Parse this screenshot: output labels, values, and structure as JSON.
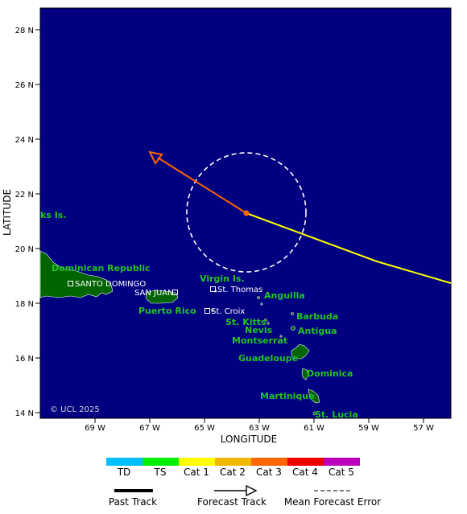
{
  "map": {
    "axes": {
      "xlabel": "LONGITUDE",
      "ylabel": "LATITUDE",
      "lon_ticks": [
        "69 W",
        "67 W",
        "65 W",
        "63 W",
        "61 W",
        "59 W",
        "57 W"
      ],
      "lat_ticks": [
        "28 N",
        "26 N",
        "24 N",
        "22 N",
        "20 N",
        "18 N",
        "16 N",
        "14 N"
      ]
    },
    "colors": {
      "ocean": "#000080",
      "land": "#006400",
      "past_track": "#ffff00",
      "forecast_track": "#ff6600",
      "error_cone": "#ffffff"
    },
    "places": [
      {
        "label": "ks Is.",
        "style": "green"
      },
      {
        "label": "Dominican Republic",
        "style": "green"
      },
      {
        "label": "SANTO DOMINGO",
        "style": "white"
      },
      {
        "label": "SAN JUAN",
        "style": "white"
      },
      {
        "label": "Puerto Rico",
        "style": "green"
      },
      {
        "label": "Virgin Is.",
        "style": "green"
      },
      {
        "label": "St. Thomas",
        "style": "white"
      },
      {
        "label": "St. Croix",
        "style": "white"
      },
      {
        "label": "Anguilla",
        "style": "green"
      },
      {
        "label": "Barbuda",
        "style": "green"
      },
      {
        "label": "St. Kitts",
        "style": "green"
      },
      {
        "label": "Nevis",
        "style": "green"
      },
      {
        "label": "Antigua",
        "style": "green"
      },
      {
        "label": "Montserrat",
        "style": "green"
      },
      {
        "label": "Guadeloupe",
        "style": "green"
      },
      {
        "label": "Dominica",
        "style": "green"
      },
      {
        "label": "Martinique",
        "style": "green"
      },
      {
        "label": "St. Lucia",
        "style": "green"
      }
    ],
    "copyright": "© UCL 2025"
  },
  "legend": {
    "categories": [
      {
        "label": "TD",
        "color": "#00bfff"
      },
      {
        "label": "TS",
        "color": "#00ee00"
      },
      {
        "label": "Cat 1",
        "color": "#ffff00"
      },
      {
        "label": "Cat 2",
        "color": "#f0b800"
      },
      {
        "label": "Cat 3",
        "color": "#ff6600"
      },
      {
        "label": "Cat 4",
        "color": "#ee0000"
      },
      {
        "label": "Cat 5",
        "color": "#bb00bb"
      }
    ],
    "past_track_label": "Past Track",
    "forecast_track_label": "Forecast Track",
    "error_label": "Mean Forecast Error"
  }
}
